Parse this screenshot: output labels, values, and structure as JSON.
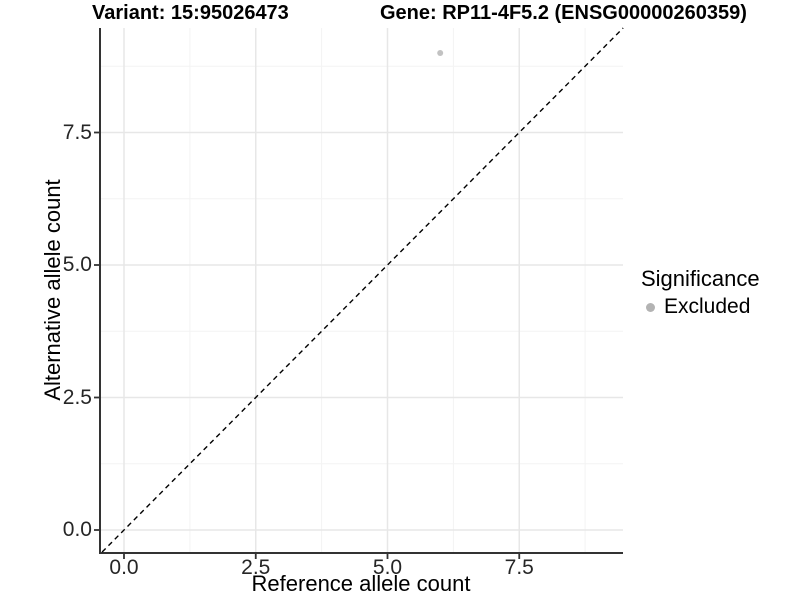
{
  "header": {
    "variant_title": "Variant: 15:95026473",
    "gene_title": "Gene: RP11-4F5.2 (ENSG00000260359)"
  },
  "chart_data": {
    "type": "scatter",
    "title": "Variant: 15:95026473   Gene: RP11-4F5.2 (ENSG00000260359)",
    "xlabel": "Reference allele count",
    "ylabel": "Alternative allele count",
    "xlim": [
      -0.47,
      9.47
    ],
    "ylim": [
      -0.47,
      9.47
    ],
    "x_tick_labels": [
      "0.0",
      "2.5",
      "5.0",
      "7.5"
    ],
    "y_tick_labels": [
      "0.0",
      "2.5",
      "5.0",
      "7.5"
    ],
    "x_tick_values": [
      0,
      2.5,
      5,
      7.5
    ],
    "y_tick_values": [
      0,
      2.5,
      5,
      7.5
    ],
    "minor_tick_values": [
      1.25,
      3.75,
      6.25,
      8.75
    ],
    "grid": true,
    "series": [
      {
        "name": "Excluded",
        "color": "#c2c2c2",
        "points": [
          {
            "x": 6,
            "y": 9
          }
        ]
      }
    ],
    "reference_line": {
      "type": "identity y=x",
      "style": "dashed",
      "color": "#000000"
    },
    "legend": {
      "position": "right",
      "title": "Significance",
      "items": [
        {
          "label": "Excluded",
          "color": "#b3b3b3",
          "marker": "circle"
        }
      ]
    },
    "colors": {
      "grid_major": "#e7e7e7",
      "grid_minor": "#f3f3f3",
      "axis_line": "#333333",
      "tick_mark": "#333333"
    }
  }
}
